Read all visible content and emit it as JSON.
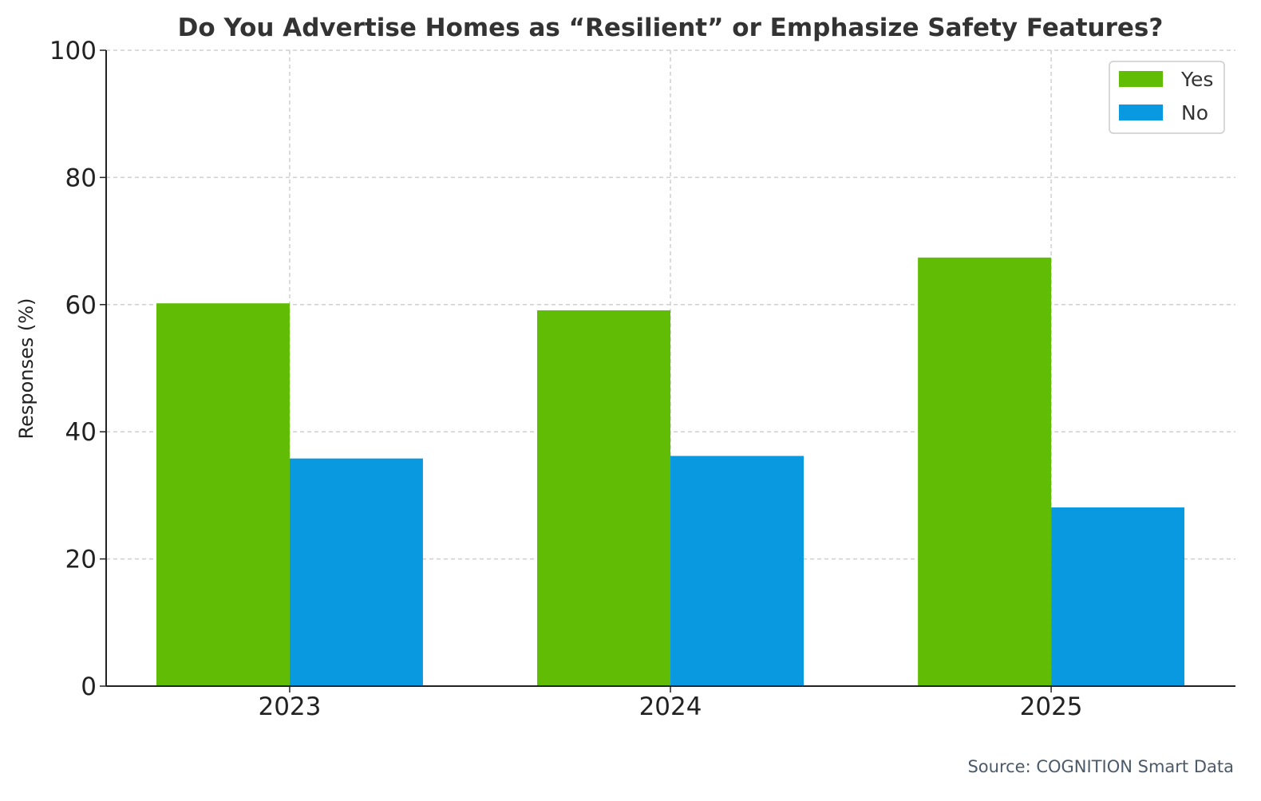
{
  "chart_data": {
    "type": "bar",
    "title": "Do You Advertise Homes as “Resilient” or Emphasize Safety Features?",
    "xlabel": "",
    "ylabel": "Responses (%)",
    "categories": [
      "2023",
      "2024",
      "2025"
    ],
    "series": [
      {
        "name": "Yes",
        "color": "#61bc06",
        "values": [
          60.2,
          59.1,
          67.4
        ]
      },
      {
        "name": "No",
        "color": "#0999e1",
        "values": [
          35.8,
          36.2,
          28.1
        ]
      }
    ],
    "ylim": [
      0,
      100
    ],
    "yticks": [
      "0",
      "20",
      "40",
      "60",
      "80",
      "100"
    ],
    "grid": true,
    "legend_position": "top-right",
    "source": "Source: COGNITION Smart Data"
  }
}
